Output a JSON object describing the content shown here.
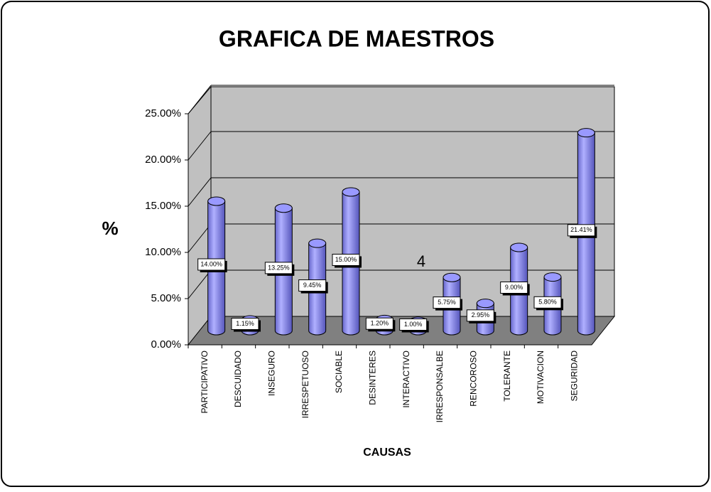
{
  "chart_data": {
    "type": "bar",
    "title": "GRAFICA DE MAESTROS",
    "y_label": "%",
    "x_label": "CAUSAS",
    "annotation": "4",
    "categories": [
      "PARTICIPATIVO",
      "DESCUIDADO",
      "INSEGURO",
      "IRRESPETUOSO",
      "SOCIABLE",
      "DESINTERES",
      "INTERACTIVO",
      "IRRESPONSALBE",
      "RENCOROSO",
      "TOLERANTE",
      "MOTIVACION",
      "SEGURIDAD"
    ],
    "values": [
      14,
      1.15,
      13.25,
      9.45,
      15,
      1.2,
      1,
      5.75,
      2.95,
      9,
      5.8,
      21.41
    ],
    "value_labels": [
      "14.00%",
      "1.15%",
      "13.25%",
      "9.45%",
      "15.00%",
      "1.20%",
      "1.00%",
      "5.75%",
      "2.95%",
      "9.00%",
      "5.80%",
      "21.41%"
    ],
    "color": "#9999ff",
    "ylim": [
      0,
      25
    ],
    "yticks": [
      {
        "value": 0,
        "label": "0.00%"
      },
      {
        "value": 5,
        "label": "5.00%"
      },
      {
        "value": 10,
        "label": "10.00%"
      },
      {
        "value": 15,
        "label": "15.00%"
      },
      {
        "value": 20,
        "label": "20.00%"
      },
      {
        "value": 25,
        "label": "25.00%"
      }
    ],
    "grid": true
  }
}
